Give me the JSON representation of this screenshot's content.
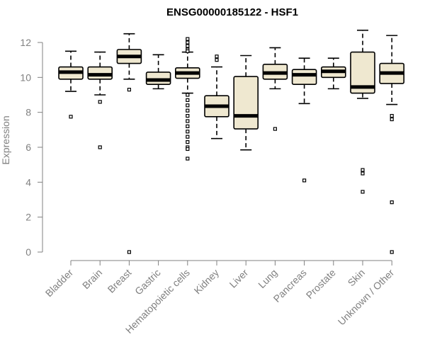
{
  "chart_data": {
    "type": "boxplot",
    "title": "ENSG00000185122 - HSF1",
    "xlabel": "",
    "ylabel": "Expression",
    "ylim": [
      0,
      12.3
    ],
    "yticks": [
      0,
      2,
      4,
      6,
      8,
      10,
      12
    ],
    "grid": false,
    "colors": {
      "box_fill": "#efe8d0",
      "stroke": "#000000",
      "axis": "#808080"
    },
    "categories": [
      "Bladder",
      "Brain",
      "Breast",
      "Gastric",
      "Hematopoietic cells",
      "Kidney",
      "Liver",
      "Lung",
      "Pancreas",
      "Prostate",
      "Skin",
      "Unknown / Other"
    ],
    "series": [
      {
        "name": "Bladder",
        "whisker_low": 9.2,
        "q1": 9.9,
        "median": 10.3,
        "q3": 10.6,
        "whisker_high": 11.5,
        "outliers": [
          7.75
        ]
      },
      {
        "name": "Brain",
        "whisker_low": 9.0,
        "q1": 9.9,
        "median": 10.15,
        "q3": 10.6,
        "whisker_high": 11.45,
        "outliers": [
          8.6,
          6.0
        ]
      },
      {
        "name": "Breast",
        "whisker_low": 9.9,
        "q1": 10.8,
        "median": 11.2,
        "q3": 11.6,
        "whisker_high": 12.5,
        "outliers": [
          9.3,
          0.0
        ]
      },
      {
        "name": "Gastric",
        "whisker_low": 9.35,
        "q1": 9.6,
        "median": 9.85,
        "q3": 10.3,
        "whisker_high": 11.3,
        "outliers": []
      },
      {
        "name": "Hematopoietic cells",
        "whisker_low": 9.1,
        "q1": 9.95,
        "median": 10.25,
        "q3": 10.55,
        "whisker_high": 11.45,
        "outliers": [
          12.2,
          12.0,
          11.8,
          11.6,
          11.5,
          9.0,
          8.7,
          8.4,
          8.1,
          7.8,
          7.5,
          7.2,
          6.9,
          6.6,
          6.3,
          6.0,
          5.9,
          5.35
        ]
      },
      {
        "name": "Kidney",
        "whisker_low": 6.5,
        "q1": 7.75,
        "median": 8.35,
        "q3": 8.95,
        "whisker_high": 10.6,
        "outliers": [
          11.2,
          11.0
        ]
      },
      {
        "name": "Liver",
        "whisker_low": 5.85,
        "q1": 7.05,
        "median": 7.8,
        "q3": 10.05,
        "whisker_high": 11.25,
        "outliers": []
      },
      {
        "name": "Lung",
        "whisker_low": 9.35,
        "q1": 9.9,
        "median": 10.25,
        "q3": 10.75,
        "whisker_high": 11.7,
        "outliers": [
          7.05
        ]
      },
      {
        "name": "Pancreas",
        "whisker_low": 8.5,
        "q1": 9.6,
        "median": 10.15,
        "q3": 10.45,
        "whisker_high": 11.1,
        "outliers": [
          4.1
        ]
      },
      {
        "name": "Prostate",
        "whisker_low": 9.35,
        "q1": 10.0,
        "median": 10.35,
        "q3": 10.6,
        "whisker_high": 11.1,
        "outliers": []
      },
      {
        "name": "Skin",
        "whisker_low": 8.8,
        "q1": 9.1,
        "median": 9.45,
        "q3": 11.45,
        "whisker_high": 12.7,
        "outliers": [
          4.7,
          4.5,
          3.45
        ]
      },
      {
        "name": "Unknown / Other",
        "whisker_low": 8.45,
        "q1": 9.65,
        "median": 10.25,
        "q3": 10.8,
        "whisker_high": 12.4,
        "outliers": [
          7.8,
          7.6,
          2.85,
          0.0
        ]
      }
    ]
  }
}
